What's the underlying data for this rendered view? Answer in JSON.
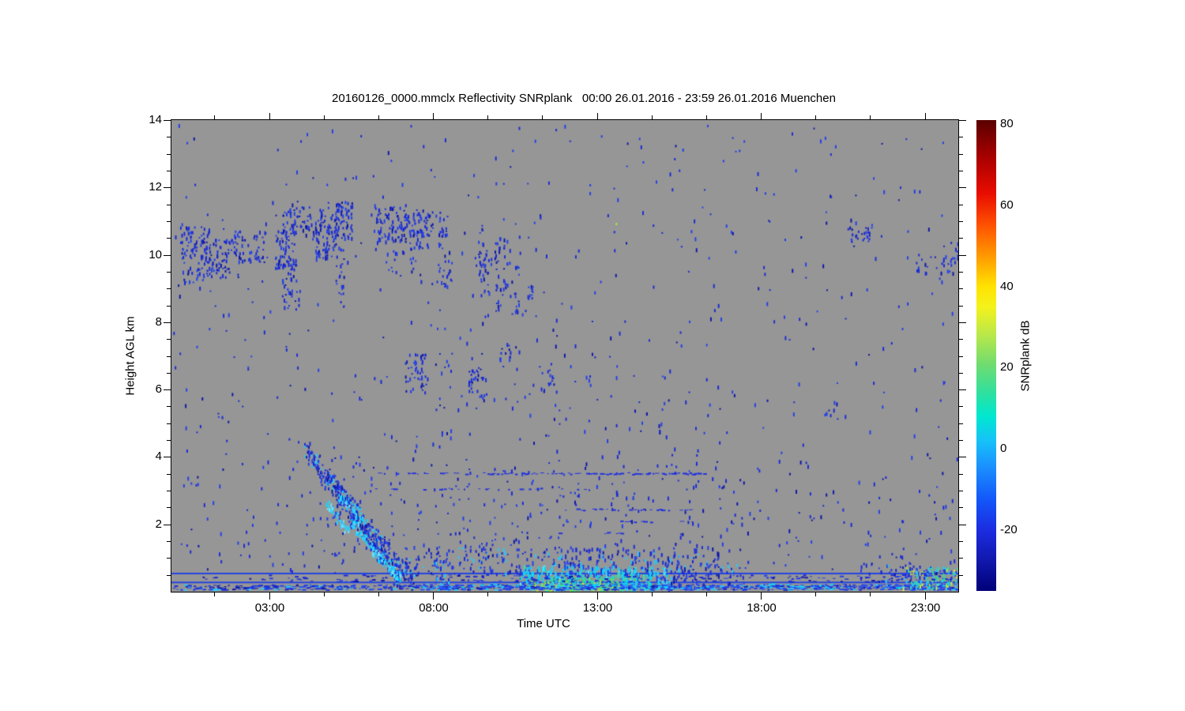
{
  "chart_data": {
    "type": "heatmap",
    "title": "20160126_0000.mmclx Reflectivity SNRplank   00:00 26.01.2016 - 23:59 26.01.2016 Muenchen",
    "xlabel": "Time UTC",
    "ylabel": "Height AGL km",
    "xlim_hours": [
      0,
      24
    ],
    "ylim_km": [
      0,
      14
    ],
    "background_color": "#969696",
    "grid": false,
    "x_ticks": [
      {
        "t": 3,
        "label": "03:00"
      },
      {
        "t": 8,
        "label": "08:00"
      },
      {
        "t": 13,
        "label": "13:00"
      },
      {
        "t": 18,
        "label": "18:00"
      },
      {
        "t": 23,
        "label": "23:00"
      }
    ],
    "x_minor_ticks_h": [
      1.333,
      4.667,
      6.333,
      9.667,
      11.333,
      14.667,
      16.333,
      19.667,
      21.333
    ],
    "y_ticks": [
      {
        "h": 2,
        "label": "2"
      },
      {
        "h": 4,
        "label": "4"
      },
      {
        "h": 6,
        "label": "6"
      },
      {
        "h": 8,
        "label": "8"
      },
      {
        "h": 10,
        "label": "10"
      },
      {
        "h": 12,
        "label": "12"
      },
      {
        "h": 14,
        "label": "14"
      }
    ],
    "y_minor_step_km": 0.5,
    "colorbar": {
      "label": "SNRplank dB",
      "range": [
        -35,
        81
      ],
      "ticks": [
        {
          "v": 80,
          "label": "80"
        },
        {
          "v": 60,
          "label": "60"
        },
        {
          "v": 40,
          "label": "40"
        },
        {
          "v": 20,
          "label": "20"
        },
        {
          "v": 0,
          "label": "0"
        },
        {
          "v": -20,
          "label": "-20"
        }
      ],
      "gradient_stops": [
        {
          "pos": 0.0,
          "color": "#5a0000"
        },
        {
          "pos": 0.078,
          "color": "#a80000"
        },
        {
          "pos": 0.155,
          "color": "#e80c00"
        },
        {
          "pos": 0.224,
          "color": "#ff5200"
        },
        {
          "pos": 0.293,
          "color": "#ff9e00"
        },
        {
          "pos": 0.353,
          "color": "#ffe200"
        },
        {
          "pos": 0.397,
          "color": "#f4f21c"
        },
        {
          "pos": 0.457,
          "color": "#b8e84a"
        },
        {
          "pos": 0.517,
          "color": "#72dc6e"
        },
        {
          "pos": 0.578,
          "color": "#30e09e"
        },
        {
          "pos": 0.629,
          "color": "#00e8d0"
        },
        {
          "pos": 0.681,
          "color": "#16c2f8"
        },
        {
          "pos": 0.741,
          "color": "#1a8cff"
        },
        {
          "pos": 0.81,
          "color": "#1354f8"
        },
        {
          "pos": 0.871,
          "color": "#1c2ce0"
        },
        {
          "pos": 0.94,
          "color": "#1016a8"
        },
        {
          "pos": 1.0,
          "color": "#000078"
        }
      ]
    },
    "random_seed": 1337,
    "palettes": {
      "blue": [
        [
          "#1c2cd4",
          0.5
        ],
        [
          "#2441e8",
          0.3
        ],
        [
          "#1018a8",
          0.2
        ]
      ],
      "bluecyan": [
        [
          "#1c2cd4",
          0.45
        ],
        [
          "#2441e8",
          0.25
        ],
        [
          "#28c8f8",
          0.18
        ],
        [
          "#1018a8",
          0.12
        ]
      ],
      "cyanblue": [
        [
          "#28c8f8",
          0.4
        ],
        [
          "#00d8f8",
          0.2
        ],
        [
          "#2441e8",
          0.25
        ],
        [
          "#1c2cd4",
          0.15
        ]
      ],
      "cyanmix": [
        [
          "#28c8f8",
          0.35
        ],
        [
          "#00dcf8",
          0.25
        ],
        [
          "#58e4f8",
          0.15
        ],
        [
          "#2441e8",
          0.15
        ],
        [
          "#30e0b0",
          0.1
        ]
      ],
      "greencyan": [
        [
          "#34dc8c",
          0.35
        ],
        [
          "#7ce44c",
          0.2
        ],
        [
          "#00dcf8",
          0.25
        ],
        [
          "#28c8f8",
          0.2
        ]
      ],
      "yellowgreen": [
        [
          "#d8e434",
          0.4
        ],
        [
          "#a8e040",
          0.3
        ],
        [
          "#7ce44c",
          0.3
        ]
      ],
      "bandmix": [
        [
          "#2441e8",
          0.4
        ],
        [
          "#1c2cd4",
          0.25
        ],
        [
          "#1018a8",
          0.1
        ],
        [
          "#28c8f8",
          0.15
        ],
        [
          "#0f1f9e",
          0.1
        ]
      ],
      "bandmix2": [
        [
          "#2c50f0",
          0.35
        ],
        [
          "#28c8f8",
          0.25
        ],
        [
          "#2441e8",
          0.25
        ],
        [
          "#00dcf8",
          0.15
        ]
      ],
      "surfright": [
        [
          "#28c8f8",
          0.3
        ],
        [
          "#34dc8c",
          0.2
        ],
        [
          "#a8e040",
          0.15
        ],
        [
          "#e0e438",
          0.1
        ],
        [
          "#2441e8",
          0.25
        ]
      ],
      "streak1": [
        [
          "#1c2cd4",
          0.4
        ],
        [
          "#2441e8",
          0.25
        ],
        [
          "#28c8f8",
          0.2
        ],
        [
          "#1018a8",
          0.15
        ]
      ],
      "cyanbright": [
        [
          "#30d0ff",
          0.45
        ],
        [
          "#00e0ff",
          0.3
        ],
        [
          "#70e8ff",
          0.15
        ],
        [
          "#2441e8",
          0.1
        ]
      ]
    },
    "features": {
      "clusters": [
        {
          "t": [
            0.25,
            1.15
          ],
          "h": [
            9.9,
            10.85
          ],
          "n": 70,
          "pal": "blue"
        },
        {
          "t": [
            0.9,
            2.05
          ],
          "h": [
            9.35,
            10.5
          ],
          "n": 80,
          "pal": "blue"
        },
        {
          "t": [
            1.9,
            2.95
          ],
          "h": [
            9.8,
            10.75
          ],
          "n": 55,
          "pal": "blue"
        },
        {
          "t": [
            0.3,
            0.95
          ],
          "h": [
            9.15,
            9.8
          ],
          "n": 18,
          "pal": "blue"
        },
        {
          "t": [
            3.15,
            3.8
          ],
          "h": [
            9.6,
            10.9
          ],
          "n": 70,
          "pal": "blue"
        },
        {
          "t": [
            3.3,
            4.9
          ],
          "h": [
            10.55,
            11.45
          ],
          "n": 85,
          "pal": "blue"
        },
        {
          "t": [
            4.35,
            5.0
          ],
          "h": [
            9.9,
            11.0
          ],
          "n": 55,
          "pal": "blue"
        },
        {
          "t": [
            4.95,
            5.5
          ],
          "h": [
            10.5,
            11.6
          ],
          "n": 70,
          "pal": "blue"
        },
        {
          "t": [
            5.0,
            5.25
          ],
          "h": [
            8.4,
            10.3
          ],
          "n": 22,
          "pal": "blue"
        },
        {
          "t": [
            3.35,
            3.95
          ],
          "h": [
            8.4,
            9.5
          ],
          "n": 30,
          "pal": "blue"
        },
        {
          "t": [
            6.15,
            7.15
          ],
          "h": [
            10.4,
            11.45
          ],
          "n": 80,
          "pal": "blue"
        },
        {
          "t": [
            7.0,
            8.4
          ],
          "h": [
            10.55,
            11.35
          ],
          "n": 70,
          "pal": "blue"
        },
        {
          "t": [
            7.25,
            7.85
          ],
          "h": [
            10.2,
            10.9
          ],
          "n": 28,
          "pal": "blue"
        },
        {
          "t": [
            8.05,
            8.55
          ],
          "h": [
            9.0,
            10.5
          ],
          "n": 26,
          "pal": "blue"
        },
        {
          "t": [
            6.5,
            7.6
          ],
          "h": [
            9.4,
            10.2
          ],
          "n": 20,
          "pal": "blue"
        },
        {
          "t": [
            9.35,
            9.52
          ],
          "h": [
            9.2,
            10.9
          ],
          "n": 20,
          "pal": "blue"
        },
        {
          "t": [
            9.52,
            9.68
          ],
          "h": [
            8.8,
            10.1
          ],
          "n": 14,
          "pal": "blue"
        },
        {
          "t": [
            9.85,
            10.02
          ],
          "h": [
            8.3,
            10.6
          ],
          "n": 20,
          "pal": "blue"
        },
        {
          "t": [
            10.1,
            10.27
          ],
          "h": [
            9.0,
            10.5
          ],
          "n": 16,
          "pal": "blue"
        },
        {
          "t": [
            10.45,
            10.62
          ],
          "h": [
            8.2,
            9.7
          ],
          "n": 14,
          "pal": "blue"
        },
        {
          "t": [
            10.85,
            11.02
          ],
          "h": [
            8.5,
            9.5
          ],
          "n": 10,
          "pal": "blue"
        },
        {
          "t": [
            9.0,
            11.5
          ],
          "h": [
            8.0,
            11.0
          ],
          "n": 35,
          "pal": "blue"
        },
        {
          "t": [
            7.1,
            7.8
          ],
          "h": [
            5.9,
            7.1
          ],
          "n": 42,
          "pal": "blue"
        },
        {
          "t": [
            9.05,
            9.5
          ],
          "h": [
            5.8,
            6.7
          ],
          "n": 28,
          "pal": "blue"
        },
        {
          "t": [
            10.0,
            10.35
          ],
          "h": [
            6.9,
            7.5
          ],
          "n": 12,
          "pal": "blue"
        },
        {
          "t": [
            11.2,
            11.65
          ],
          "h": [
            6.15,
            6.6
          ],
          "n": 10,
          "pal": "blue"
        },
        {
          "t": [
            20.6,
            21.35
          ],
          "h": [
            10.4,
            10.95
          ],
          "n": 26,
          "pal": "blue"
        },
        {
          "t": [
            22.6,
            23.95
          ],
          "h": [
            9.45,
            10.05
          ],
          "n": 26,
          "pal": "blue"
        },
        {
          "t": [
            23.5,
            24.0
          ],
          "h": [
            9.9,
            10.4
          ],
          "n": 10,
          "pal": "blue"
        },
        {
          "t": [
            19.9,
            20.3
          ],
          "h": [
            5.25,
            5.65
          ],
          "n": 7,
          "pal": "blue"
        },
        {
          "t": [
            0.05,
            23.95
          ],
          "h": [
            0.6,
            13.9
          ],
          "n": 560,
          "pal": "blue"
        },
        {
          "t": [
            8.0,
            17.0
          ],
          "h": [
            1.2,
            3.9
          ],
          "n": 130,
          "pal": "blue"
        },
        {
          "t": [
            8.0,
            17.0
          ],
          "h": [
            4.2,
            7.9
          ],
          "n": 80,
          "pal": "blue"
        },
        {
          "t": [
            16.5,
            24.0
          ],
          "h": [
            0.8,
            4.0
          ],
          "n": 60,
          "pal": "blue"
        },
        {
          "t": [
            0.2,
            4.0
          ],
          "h": [
            0.7,
            4.0
          ],
          "n": 25,
          "pal": "blue"
        },
        {
          "t": [
            3.95,
            7.6
          ],
          "h": [
            0.5,
            4.5
          ],
          "n": 60,
          "pal": "blue"
        },
        {
          "t": [
            7.0,
            10.6
          ],
          "h": [
            0.55,
            1.45
          ],
          "n": 110,
          "pal": "bluecyan"
        },
        {
          "t": [
            8.0,
            8.45
          ],
          "h": [
            0.15,
            1.0
          ],
          "n": 30,
          "pal": "cyanblue"
        },
        {
          "t": [
            10.5,
            16.7
          ],
          "h": [
            0.5,
            1.35
          ],
          "n": 200,
          "pal": "bluecyan",
          "sz": [
            2,
            6
          ]
        },
        {
          "t": [
            10.6,
            15.2
          ],
          "h": [
            0.12,
            0.8
          ],
          "n": 320,
          "pal": "cyanmix",
          "sz": [
            2,
            8
          ]
        },
        {
          "t": [
            10.9,
            14.2
          ],
          "h": [
            0.08,
            0.5
          ],
          "n": 140,
          "pal": "greencyan",
          "sz": [
            2,
            6
          ]
        },
        {
          "t": [
            11.0,
            13.8
          ],
          "h": [
            0.05,
            0.3
          ],
          "n": 70,
          "pal": "yellowgreen",
          "sz": [
            2,
            4
          ]
        },
        {
          "t": [
            15.0,
            17.5
          ],
          "h": [
            0.1,
            0.95
          ],
          "n": 70,
          "pal": "bluecyan"
        },
        {
          "t": [
            8.0,
            24.0
          ],
          "h": [
            0.3,
            0.52
          ],
          "n": 150,
          "pal": "blue",
          "shape": "dash"
        },
        {
          "t": [
            0.2,
            8.0
          ],
          "h": [
            0.3,
            0.52
          ],
          "n": 40,
          "pal": "blue",
          "shape": "dash"
        },
        {
          "t": [
            0.0,
            24.0
          ],
          "h": [
            0.07,
            0.22
          ],
          "n": 700,
          "pal": "bandmix",
          "shape": "dash"
        },
        {
          "t": [
            7.5,
            24.0
          ],
          "h": [
            0.07,
            0.25
          ],
          "n": 400,
          "pal": "bandmix2",
          "shape": "dash"
        },
        {
          "t": [
            22.3,
            24.0
          ],
          "h": [
            0.1,
            0.75
          ],
          "n": 130,
          "pal": "surfright"
        },
        {
          "t": [
            21.0,
            24.0
          ],
          "h": [
            0.3,
            0.9
          ],
          "n": 60,
          "pal": "bluecyan"
        }
      ],
      "streaks": [
        {
          "from": [
            4.1,
            4.2
          ],
          "to": [
            6.95,
            0.32
          ],
          "n": 280,
          "jt": 0.12,
          "jh": 0.22,
          "pal": "streak1"
        },
        {
          "from": [
            4.7,
            3.55
          ],
          "to": [
            7.35,
            0.33
          ],
          "n": 220,
          "jt": 0.12,
          "jh": 0.2,
          "pal": "streak1"
        },
        {
          "from": [
            4.75,
            2.6
          ],
          "to": [
            5.4,
            1.8
          ],
          "n": 45,
          "jt": 0.07,
          "jh": 0.12,
          "pal": "cyanbright"
        },
        {
          "from": [
            5.5,
            2.05
          ],
          "to": [
            6.35,
            1.0
          ],
          "n": 55,
          "jt": 0.07,
          "jh": 0.12,
          "pal": "cyanbright"
        },
        {
          "from": [
            6.35,
            1.05
          ],
          "to": [
            6.95,
            0.45
          ],
          "n": 45,
          "jt": 0.07,
          "jh": 0.12,
          "pal": "cyanbright"
        },
        {
          "from": [
            5.15,
            2.9
          ],
          "to": [
            5.8,
            2.1
          ],
          "n": 35,
          "jt": 0.07,
          "jh": 0.12,
          "pal": "cyanbright"
        }
      ],
      "dashed_lines": [
        {
          "h": 3.52,
          "t": [
            6.3,
            9.5
          ],
          "density": 0.35,
          "color": "#2433dd"
        },
        {
          "h": 3.52,
          "t": [
            9.5,
            16.25
          ],
          "density": 0.6,
          "color": "#2433dd"
        },
        {
          "h": 3.07,
          "t": [
            6.0,
            12.6
          ],
          "density": 0.25,
          "color": "#2433dd"
        },
        {
          "h": 2.45,
          "t": [
            12.0,
            16.1
          ],
          "density": 0.4,
          "color": "#2433dd"
        },
        {
          "h": 2.1,
          "t": [
            12.5,
            16.0
          ],
          "density": 0.2,
          "color": "#2433dd"
        },
        {
          "h": 1.75,
          "t": [
            11.6,
            15.8
          ],
          "density": 0.25,
          "color": "#2433dd"
        }
      ],
      "solid_lines": [
        {
          "h": 0.54,
          "thickness": 2,
          "color": "#2545e0"
        },
        {
          "h": 0.275,
          "thickness": 2,
          "color": "#2545e0"
        }
      ],
      "extra_dots": [
        {
          "t": 13.55,
          "h": 10.95,
          "color": "#a8e838"
        },
        {
          "t": 13.1,
          "h": 13.55,
          "color": "#2441e8"
        },
        {
          "t": 0.46,
          "h": 13.35,
          "color": "#2441e8"
        },
        {
          "t": 3.93,
          "h": 13.4,
          "color": "#1c2cd4"
        },
        {
          "t": 17.45,
          "h": 13.4,
          "color": "#2441e8"
        },
        {
          "t": 20.1,
          "h": 11.75,
          "color": "#1c2cd4"
        },
        {
          "t": 21.4,
          "h": 12.3,
          "color": "#2441e8"
        },
        {
          "t": 7.9,
          "h": 12.55,
          "color": "#1c2cd4"
        },
        {
          "t": 12.75,
          "h": 12.1,
          "color": "#2441e8"
        }
      ]
    }
  }
}
